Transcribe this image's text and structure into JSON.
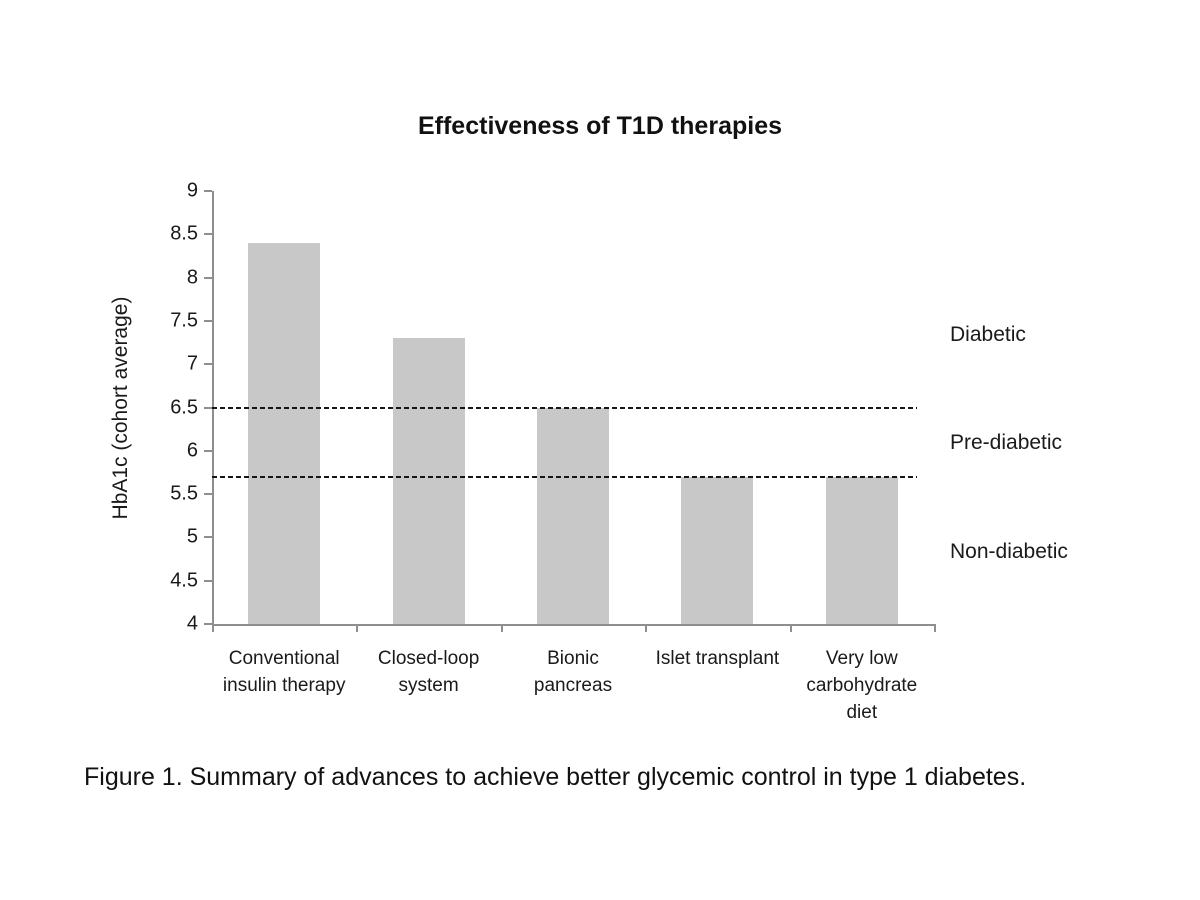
{
  "page": {
    "background": "#ffffff"
  },
  "chart_data": {
    "type": "bar",
    "title": "Effectiveness of T1D therapies",
    "xlabel": "",
    "ylabel": "HbA1c (cohort average)",
    "categories": [
      "Conventional\ninsulin therapy",
      "Closed-loop\nsystem",
      "Bionic\npancreas",
      "Islet transplant",
      "Very low\ncarbohydrate\ndiet"
    ],
    "values": [
      8.4,
      7.3,
      6.5,
      5.7,
      5.7
    ],
    "ylim": [
      4,
      9
    ],
    "yticks": [
      9,
      8.5,
      8,
      7.5,
      7,
      6.5,
      6,
      5.5,
      5,
      4.5,
      4
    ],
    "grid": false,
    "legend": "none",
    "bar_color": "#c8c8c8",
    "axis_color": "#8e8e8e",
    "reference_lines": [
      {
        "value": 6.5,
        "style": "dashed",
        "color": "#161616"
      },
      {
        "value": 5.7,
        "style": "dashed",
        "color": "#161616"
      }
    ],
    "zone_labels": [
      {
        "text": "Diabetic",
        "y_value": 7.34
      },
      {
        "text": "Pre-diabetic",
        "y_value": 6.09
      },
      {
        "text": "Non-diabetic",
        "y_value": 4.83
      }
    ]
  },
  "caption": "Figure 1. Summary of advances to achieve better glycemic control in type 1 diabetes."
}
